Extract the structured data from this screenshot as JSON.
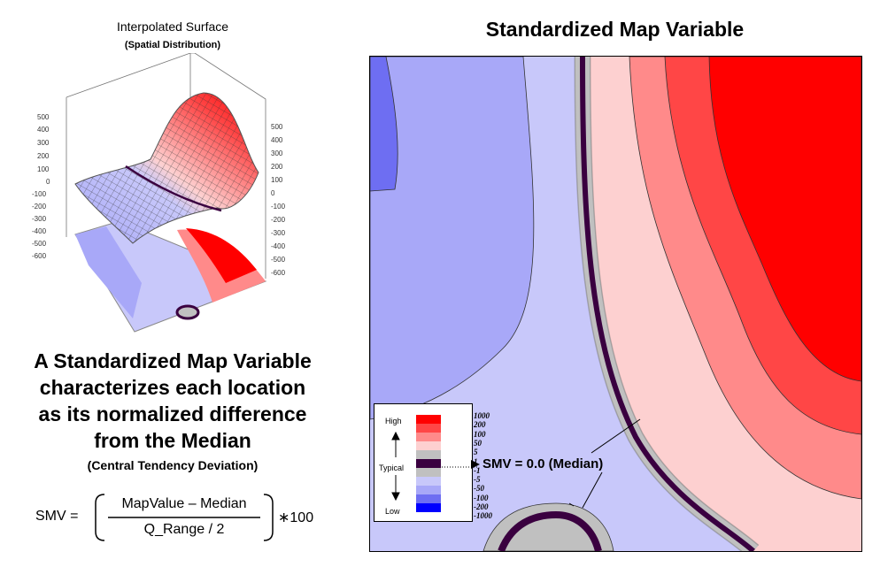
{
  "left": {
    "title": "Interpolated Surface",
    "subtitle": "(Spatial Distribution)",
    "axis_left_ticks": [
      "500",
      "400",
      "300",
      "200",
      "100",
      "0",
      "-100",
      "-200",
      "-300",
      "-400",
      "-500",
      "-600"
    ],
    "axis_right_ticks": [
      "500",
      "400",
      "300",
      "200",
      "100",
      "0",
      "-100",
      "-200",
      "-300",
      "-400",
      "-500",
      "-600"
    ],
    "description_lines": [
      "A Standardized Map Variable",
      "characterizes each location",
      "as its normalized difference",
      "from the Median"
    ],
    "description_sub": "(Central Tendency Deviation)",
    "formula": {
      "lhs": "SMV =",
      "numerator": "MapValue – Median",
      "denominator": "Q_Range / 2",
      "multiplier": "∗100"
    }
  },
  "right": {
    "title": "Standardized Map Variable",
    "legend": {
      "high": "High",
      "typical": "Typical",
      "low": "Low",
      "levels": [
        "1000",
        "200",
        "100",
        "50",
        "5",
        "1",
        "-1",
        "-5",
        "-50",
        "-100",
        "-200",
        "-1000"
      ],
      "swatches": [
        "#ff0000",
        "#ff4646",
        "#ff8a8a",
        "#fdd0d0",
        "#c0c0c0",
        "#3a0040",
        "#c0c0c0",
        "#c8c8fa",
        "#a8a8f8",
        "#6e6ef2",
        "#0000ff"
      ]
    },
    "callout": "SMV = 0.0 (Median)"
  }
}
